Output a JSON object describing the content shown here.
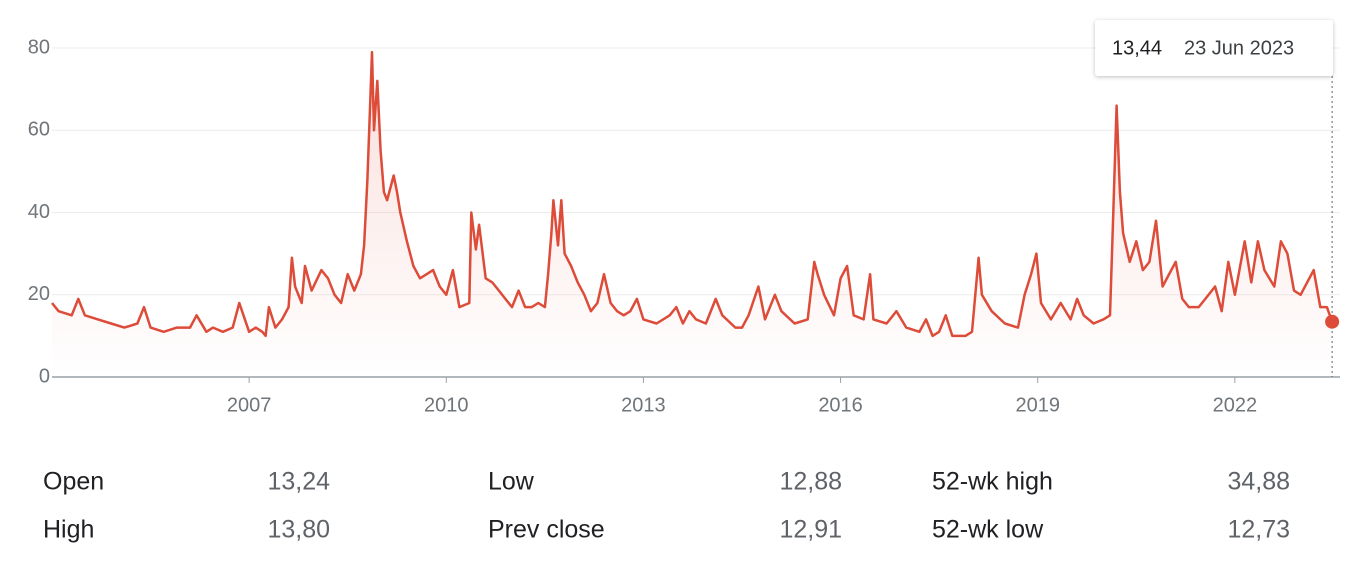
{
  "chart_data": {
    "type": "line",
    "x": [
      2004.0,
      2004.1,
      2004.3,
      2004.4,
      2004.5,
      2004.7,
      2004.9,
      2005.1,
      2005.3,
      2005.4,
      2005.5,
      2005.7,
      2005.9,
      2006.1,
      2006.2,
      2006.35,
      2006.45,
      2006.6,
      2006.75,
      2006.85,
      2007.0,
      2007.1,
      2007.2,
      2007.25,
      2007.3,
      2007.4,
      2007.5,
      2007.6,
      2007.65,
      2007.7,
      2007.8,
      2007.85,
      2007.95,
      2008.1,
      2008.2,
      2008.3,
      2008.4,
      2008.5,
      2008.6,
      2008.7,
      2008.75,
      2008.8,
      2008.85,
      2008.87,
      2008.9,
      2008.95,
      2009.0,
      2009.05,
      2009.1,
      2009.2,
      2009.25,
      2009.3,
      2009.4,
      2009.5,
      2009.6,
      2009.7,
      2009.8,
      2009.9,
      2010.0,
      2010.1,
      2010.2,
      2010.35,
      2010.38,
      2010.45,
      2010.5,
      2010.6,
      2010.7,
      2010.8,
      2010.9,
      2011.0,
      2011.1,
      2011.2,
      2011.3,
      2011.4,
      2011.5,
      2011.55,
      2011.6,
      2011.63,
      2011.7,
      2011.75,
      2011.8,
      2011.9,
      2012.0,
      2012.1,
      2012.2,
      2012.3,
      2012.4,
      2012.5,
      2012.6,
      2012.7,
      2012.8,
      2012.9,
      2013.0,
      2013.2,
      2013.4,
      2013.5,
      2013.6,
      2013.7,
      2013.8,
      2013.95,
      2014.1,
      2014.2,
      2014.4,
      2014.5,
      2014.6,
      2014.75,
      2014.85,
      2015.0,
      2015.1,
      2015.3,
      2015.5,
      2015.6,
      2015.65,
      2015.75,
      2015.9,
      2016.0,
      2016.1,
      2016.2,
      2016.35,
      2016.45,
      2016.5,
      2016.7,
      2016.85,
      2017.0,
      2017.2,
      2017.3,
      2017.4,
      2017.5,
      2017.6,
      2017.7,
      2017.9,
      2018.0,
      2018.1,
      2018.15,
      2018.3,
      2018.5,
      2018.7,
      2018.8,
      2018.9,
      2018.98,
      2019.05,
      2019.2,
      2019.35,
      2019.5,
      2019.6,
      2019.7,
      2019.85,
      2020.0,
      2020.1,
      2020.15,
      2020.2,
      2020.25,
      2020.3,
      2020.4,
      2020.5,
      2020.6,
      2020.7,
      2020.8,
      2020.9,
      2021.0,
      2021.1,
      2021.2,
      2021.3,
      2021.45,
      2021.55,
      2021.7,
      2021.8,
      2021.9,
      2022.0,
      2022.15,
      2022.25,
      2022.35,
      2022.45,
      2022.6,
      2022.7,
      2022.8,
      2022.9,
      2023.0,
      2023.2,
      2023.3,
      2023.4,
      2023.48
    ],
    "series": [
      {
        "color": "#dd4b39",
        "values": [
          18,
          16,
          15,
          19,
          15,
          14,
          13,
          12,
          13,
          17,
          12,
          11,
          12,
          12,
          15,
          11,
          12,
          11,
          12,
          18,
          11,
          12,
          11,
          10,
          17,
          12,
          14,
          17,
          29,
          22,
          18,
          27,
          21,
          26,
          24,
          20,
          18,
          25,
          21,
          25,
          32,
          48,
          70,
          79,
          60,
          72,
          55,
          45,
          43,
          49,
          45,
          40,
          33,
          27,
          24,
          25,
          26,
          22,
          20,
          26,
          17,
          18,
          40,
          31,
          37,
          24,
          23,
          21,
          19,
          17,
          21,
          17,
          17,
          18,
          17,
          25,
          35,
          43,
          32,
          43,
          30,
          27,
          23,
          20,
          16,
          18,
          25,
          18,
          16,
          15,
          16,
          19,
          14,
          13,
          15,
          17,
          13,
          16,
          14,
          13,
          19,
          15,
          12,
          12,
          15,
          22,
          14,
          20,
          16,
          13,
          14,
          28,
          25,
          20,
          15,
          24,
          27,
          15,
          14,
          25,
          14,
          13,
          16,
          12,
          11,
          14,
          10,
          11,
          15,
          10,
          10,
          11,
          29,
          20,
          16,
          13,
          12,
          20,
          25,
          30,
          18,
          14,
          18,
          14,
          19,
          15,
          13,
          14,
          15,
          40,
          66,
          45,
          35,
          28,
          33,
          26,
          28,
          38,
          22,
          25,
          28,
          19,
          17,
          17,
          19,
          22,
          16,
          28,
          20,
          33,
          23,
          33,
          26,
          22,
          33,
          30,
          21,
          20,
          26,
          17,
          17,
          13.44
        ]
      }
    ],
    "xlim": [
      2004.0,
      2023.6
    ],
    "ylim": [
      0,
      80
    ],
    "xticks": [
      2007,
      2010,
      2013,
      2016,
      2019,
      2022
    ],
    "yticks": [
      0,
      20,
      40,
      60,
      80
    ],
    "grid": true,
    "tooltip": {
      "value": "13,44",
      "date": "23 Jun 2023"
    }
  },
  "stats": [
    [
      {
        "label": "Open",
        "value": "13,24"
      },
      {
        "label": "Low",
        "value": "12,88"
      },
      {
        "label": "52-wk high",
        "value": "34,88"
      }
    ],
    [
      {
        "label": "High",
        "value": "13,80"
      },
      {
        "label": "Prev close",
        "value": "12,91"
      },
      {
        "label": "52-wk low",
        "value": "12,73"
      }
    ]
  ]
}
